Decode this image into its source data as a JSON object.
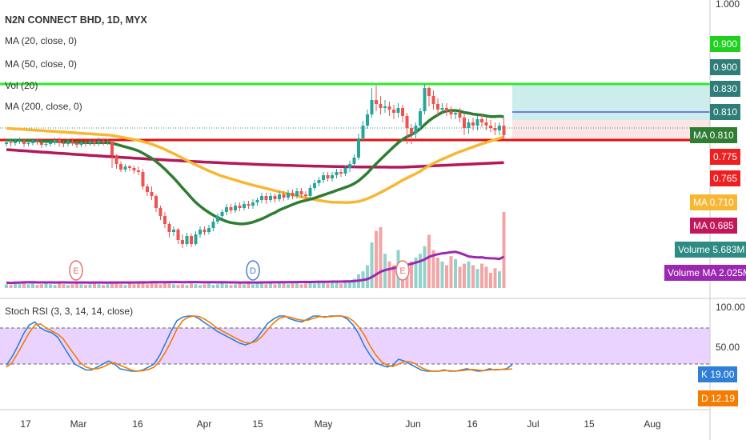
{
  "chart_data": {
    "type": "candlestick",
    "title": "N2N CONNECT BHD, 1D, MYX",
    "legend": [
      "MA (20, close, 0)",
      "MA (50, close, 0)",
      "Vol (20)",
      "MA (200, close, 0)"
    ],
    "price_axis": {
      "ticks": [
        "1.000"
      ],
      "range": [
        0.635,
        1.005
      ]
    },
    "price_labels": [
      {
        "value": 0.9,
        "text": "0.900",
        "color": "#1fd11f"
      },
      {
        "value": 0.9,
        "text": "0.900",
        "color": "#2e7d78"
      },
      {
        "value": 0.83,
        "text": "0.830",
        "color": "#2e7d78"
      },
      {
        "value": 0.81,
        "text": "0.810",
        "color": "#2e7d78"
      },
      {
        "value": 0.81,
        "text": "MA 0.810",
        "color": "#2e7d32"
      },
      {
        "value": 0.775,
        "text": "0.775",
        "color": "#f01f1f"
      },
      {
        "value": 0.765,
        "text": "0.765",
        "color": "#f01f1f"
      },
      {
        "value": 0.71,
        "text": "MA 0.710",
        "color": "#f7b733"
      },
      {
        "value": 0.685,
        "text": "MA 0.685",
        "color": "#c2185b"
      }
    ],
    "volume_labels": [
      {
        "text": "Volume 5.683M",
        "color": "#2e8b84"
      },
      {
        "text": "Volume MA 2.025M",
        "color": "#9c27b0"
      }
    ],
    "horizontal_lines": [
      {
        "value": 0.9,
        "color": "#2eea2e"
      },
      {
        "value": 0.83,
        "color": "#e01010"
      }
    ],
    "candles": [
      [
        0.825,
        0.827,
        0.83,
        0.822
      ],
      [
        0.827,
        0.826,
        0.83,
        0.822
      ],
      [
        0.826,
        0.828,
        0.832,
        0.823
      ],
      [
        0.828,
        0.829,
        0.833,
        0.825
      ],
      [
        0.829,
        0.825,
        0.832,
        0.821
      ],
      [
        0.825,
        0.826,
        0.829,
        0.822
      ],
      [
        0.826,
        0.829,
        0.832,
        0.823
      ],
      [
        0.829,
        0.827,
        0.832,
        0.824
      ],
      [
        0.827,
        0.824,
        0.83,
        0.82
      ],
      [
        0.824,
        0.825,
        0.828,
        0.821
      ],
      [
        0.825,
        0.827,
        0.83,
        0.822
      ],
      [
        0.827,
        0.83,
        0.833,
        0.824
      ],
      [
        0.83,
        0.826,
        0.833,
        0.822
      ],
      [
        0.826,
        0.825,
        0.829,
        0.821
      ],
      [
        0.825,
        0.828,
        0.831,
        0.822
      ],
      [
        0.828,
        0.826,
        0.832,
        0.823
      ],
      [
        0.826,
        0.824,
        0.829,
        0.82
      ],
      [
        0.824,
        0.827,
        0.83,
        0.821
      ],
      [
        0.827,
        0.826,
        0.83,
        0.822
      ],
      [
        0.826,
        0.828,
        0.832,
        0.823
      ],
      [
        0.828,
        0.826,
        0.831,
        0.822
      ],
      [
        0.826,
        0.829,
        0.833,
        0.823
      ],
      [
        0.829,
        0.827,
        0.832,
        0.823
      ],
      [
        0.827,
        0.828,
        0.831,
        0.824
      ],
      [
        0.828,
        0.811,
        0.83,
        0.795
      ],
      [
        0.811,
        0.8,
        0.812,
        0.794
      ],
      [
        0.8,
        0.793,
        0.803,
        0.79
      ],
      [
        0.793,
        0.797,
        0.8,
        0.79
      ],
      [
        0.797,
        0.795,
        0.799,
        0.791
      ],
      [
        0.795,
        0.792,
        0.798,
        0.788
      ],
      [
        0.792,
        0.79,
        0.797,
        0.786
      ],
      [
        0.79,
        0.772,
        0.794,
        0.768
      ],
      [
        0.772,
        0.765,
        0.775,
        0.76
      ],
      [
        0.765,
        0.76,
        0.772,
        0.755
      ],
      [
        0.76,
        0.745,
        0.762,
        0.74
      ],
      [
        0.745,
        0.735,
        0.748,
        0.73
      ],
      [
        0.735,
        0.725,
        0.74,
        0.72
      ],
      [
        0.725,
        0.715,
        0.728,
        0.708
      ],
      [
        0.715,
        0.718,
        0.722,
        0.71
      ],
      [
        0.718,
        0.705,
        0.72,
        0.7
      ],
      [
        0.705,
        0.7,
        0.712,
        0.695
      ],
      [
        0.7,
        0.71,
        0.714,
        0.697
      ],
      [
        0.71,
        0.7,
        0.713,
        0.696
      ],
      [
        0.7,
        0.712,
        0.716,
        0.698
      ],
      [
        0.712,
        0.718,
        0.722,
        0.708
      ],
      [
        0.718,
        0.715,
        0.722,
        0.711
      ],
      [
        0.715,
        0.72,
        0.724,
        0.712
      ],
      [
        0.72,
        0.728,
        0.732,
        0.716
      ],
      [
        0.728,
        0.735,
        0.738,
        0.725
      ],
      [
        0.735,
        0.74,
        0.743,
        0.732
      ],
      [
        0.74,
        0.746,
        0.75,
        0.736
      ],
      [
        0.746,
        0.742,
        0.75,
        0.738
      ],
      [
        0.742,
        0.748,
        0.752,
        0.739
      ],
      [
        0.748,
        0.745,
        0.752,
        0.741
      ],
      [
        0.745,
        0.75,
        0.754,
        0.742
      ],
      [
        0.75,
        0.748,
        0.754,
        0.744
      ],
      [
        0.748,
        0.752,
        0.756,
        0.744
      ],
      [
        0.752,
        0.755,
        0.758,
        0.748
      ],
      [
        0.755,
        0.76,
        0.764,
        0.751
      ],
      [
        0.76,
        0.755,
        0.764,
        0.75
      ],
      [
        0.755,
        0.76,
        0.764,
        0.752
      ],
      [
        0.76,
        0.756,
        0.763,
        0.752
      ],
      [
        0.756,
        0.762,
        0.766,
        0.753
      ],
      [
        0.762,
        0.758,
        0.766,
        0.754
      ],
      [
        0.758,
        0.764,
        0.768,
        0.755
      ],
      [
        0.764,
        0.76,
        0.768,
        0.756
      ],
      [
        0.76,
        0.766,
        0.77,
        0.757
      ],
      [
        0.766,
        0.762,
        0.77,
        0.758
      ],
      [
        0.762,
        0.76,
        0.766,
        0.755
      ],
      [
        0.76,
        0.77,
        0.774,
        0.757
      ],
      [
        0.77,
        0.776,
        0.78,
        0.767
      ],
      [
        0.776,
        0.78,
        0.784,
        0.772
      ],
      [
        0.78,
        0.786,
        0.79,
        0.776
      ],
      [
        0.786,
        0.782,
        0.79,
        0.778
      ],
      [
        0.782,
        0.786,
        0.79,
        0.778
      ],
      [
        0.786,
        0.79,
        0.794,
        0.782
      ],
      [
        0.79,
        0.788,
        0.794,
        0.784
      ],
      [
        0.788,
        0.795,
        0.798,
        0.785
      ],
      [
        0.795,
        0.8,
        0.804,
        0.79
      ],
      [
        0.8,
        0.808,
        0.812,
        0.796
      ],
      [
        0.808,
        0.832,
        0.838,
        0.805
      ],
      [
        0.832,
        0.848,
        0.854,
        0.828
      ],
      [
        0.848,
        0.862,
        0.868,
        0.844
      ],
      [
        0.862,
        0.88,
        0.895,
        0.858
      ],
      [
        0.88,
        0.875,
        0.898,
        0.866
      ],
      [
        0.875,
        0.87,
        0.885,
        0.862
      ],
      [
        0.87,
        0.872,
        0.88,
        0.864
      ],
      [
        0.872,
        0.868,
        0.878,
        0.86
      ],
      [
        0.868,
        0.864,
        0.874,
        0.856
      ],
      [
        0.864,
        0.87,
        0.876,
        0.858
      ],
      [
        0.87,
        0.86,
        0.874,
        0.852
      ],
      [
        0.86,
        0.845,
        0.864,
        0.825
      ],
      [
        0.845,
        0.838,
        0.85,
        0.825
      ],
      [
        0.838,
        0.848,
        0.852,
        0.832
      ],
      [
        0.848,
        0.866,
        0.87,
        0.842
      ],
      [
        0.866,
        0.895,
        0.9,
        0.862
      ],
      [
        0.895,
        0.885,
        0.897,
        0.872
      ],
      [
        0.885,
        0.875,
        0.892,
        0.868
      ],
      [
        0.875,
        0.868,
        0.882,
        0.86
      ],
      [
        0.868,
        0.87,
        0.876,
        0.862
      ],
      [
        0.87,
        0.866,
        0.876,
        0.86
      ],
      [
        0.866,
        0.862,
        0.872,
        0.856
      ],
      [
        0.862,
        0.864,
        0.868,
        0.856
      ],
      [
        0.864,
        0.858,
        0.87,
        0.852
      ],
      [
        0.858,
        0.845,
        0.862,
        0.836
      ],
      [
        0.845,
        0.852,
        0.856,
        0.838
      ],
      [
        0.852,
        0.848,
        0.858,
        0.842
      ],
      [
        0.848,
        0.856,
        0.86,
        0.842
      ],
      [
        0.856,
        0.852,
        0.862,
        0.846
      ],
      [
        0.852,
        0.848,
        0.858,
        0.842
      ],
      [
        0.848,
        0.845,
        0.855,
        0.84
      ],
      [
        0.845,
        0.842,
        0.852,
        0.836
      ],
      [
        0.842,
        0.848,
        0.852,
        0.836
      ],
      [
        0.848,
        0.836,
        0.858,
        0.832
      ]
    ],
    "volume": [
      0.05,
      0.04,
      0.06,
      0.05,
      0.07,
      0.05,
      0.06,
      0.04,
      0.05,
      0.06,
      0.05,
      0.04,
      0.06,
      0.05,
      0.04,
      0.05,
      0.06,
      0.05,
      0.04,
      0.05,
      0.06,
      0.05,
      0.04,
      0.05,
      0.08,
      0.06,
      0.05,
      0.04,
      0.06,
      0.05,
      0.07,
      0.06,
      0.05,
      0.08,
      0.06,
      0.05,
      0.07,
      0.06,
      0.05,
      0.04,
      0.05,
      0.04,
      0.06,
      0.05,
      0.04,
      0.05,
      0.06,
      0.04,
      0.05,
      0.07,
      0.05,
      0.04,
      0.05,
      0.06,
      0.05,
      0.07,
      0.05,
      0.06,
      0.07,
      0.05,
      0.06,
      0.05,
      0.08,
      0.06,
      0.05,
      0.07,
      0.06,
      0.05,
      0.06,
      0.07,
      0.06,
      0.08,
      0.07,
      0.06,
      0.08,
      0.07,
      0.06,
      0.09,
      0.1,
      0.12,
      0.18,
      0.22,
      0.3,
      0.6,
      0.75,
      0.8,
      0.45,
      0.35,
      0.3,
      0.5,
      0.25,
      0.3,
      0.35,
      0.4,
      0.45,
      0.55,
      0.7,
      0.5,
      0.4,
      0.35,
      0.3,
      0.42,
      0.38,
      0.28,
      0.32,
      0.35,
      0.3,
      0.25,
      0.32,
      0.28,
      0.2,
      0.26,
      0.22,
      1.0
    ],
    "x_axis": {
      "ticks": [
        "17",
        "Mar",
        "16",
        "Apr",
        "15",
        "May",
        "Jun",
        "16",
        "Jul",
        "15",
        "Aug"
      ]
    },
    "event_markers": [
      "E",
      "D",
      "E"
    ],
    "indicator": {
      "name": "Stoch RSI (3, 3, 14, 14, close)",
      "ticks": [
        "100.00",
        "50.00"
      ],
      "bands": [
        80,
        20
      ],
      "k_label": "K 19.00",
      "d_label": "D 12.19",
      "k": [
        18,
        32,
        50,
        70,
        85,
        90,
        80,
        75,
        72,
        65,
        50,
        35,
        20,
        15,
        10,
        10,
        15,
        20,
        25,
        20,
        12,
        10,
        8,
        8,
        10,
        15,
        20,
        35,
        55,
        75,
        92,
        98,
        100,
        100,
        95,
        88,
        82,
        75,
        70,
        65,
        60,
        55,
        52,
        55,
        62,
        75,
        88,
        95,
        100,
        100,
        95,
        92,
        90,
        95,
        100,
        100,
        98,
        100,
        100,
        100,
        95,
        85,
        70,
        50,
        35,
        22,
        18,
        15,
        18,
        28,
        25,
        20,
        15,
        10,
        8,
        8,
        8,
        10,
        8,
        8,
        10,
        12,
        10,
        8,
        9,
        12,
        10,
        11,
        12,
        19
      ],
      "d": [
        15,
        22,
        38,
        55,
        72,
        85,
        87,
        80,
        75,
        70,
        62,
        48,
        35,
        22,
        15,
        12,
        12,
        15,
        20,
        22,
        18,
        14,
        10,
        8,
        9,
        11,
        15,
        25,
        40,
        58,
        78,
        92,
        98,
        100,
        99,
        94,
        88,
        80,
        75,
        70,
        65,
        60,
        56,
        55,
        58,
        66,
        78,
        88,
        96,
        99,
        98,
        95,
        93,
        93,
        96,
        99,
        99,
        99,
        100,
        100,
        98,
        92,
        82,
        68,
        50,
        35,
        24,
        18,
        16,
        20,
        24,
        24,
        20,
        14,
        10,
        8,
        8,
        9,
        9,
        8,
        9,
        10,
        11,
        10,
        9,
        10,
        11,
        11,
        11,
        12
      ]
    }
  }
}
